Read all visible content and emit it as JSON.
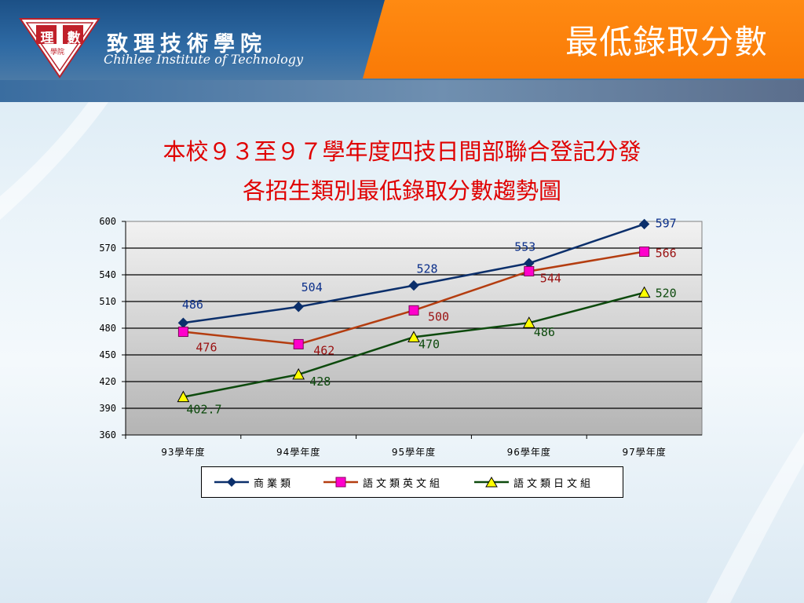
{
  "header": {
    "title": "最低錄取分數",
    "school_name_zh": "致理技術學院",
    "school_name_en": "Chihlee Institute of Technology",
    "logo_chars": [
      "理",
      "數",
      "學院"
    ]
  },
  "colors": {
    "header_blue": "#1c5086",
    "orange_tab": "#f97a06",
    "title_red": "#e00000",
    "series_1": "#0b2f6b",
    "series_2": "#b43d10",
    "series_3": "#0d4a0d",
    "marker_1": "#0b2f6b",
    "marker_2": "#ff00cc",
    "marker_3": "#ffff00"
  },
  "chart_data": {
    "type": "line",
    "title_lines": [
      "本校９３至９７學年度四技日間部聯合登記分發",
      "各招生類別最低錄取分數趨勢圖"
    ],
    "categories": [
      "93學年度",
      "94學年度",
      "95學年度",
      "96學年度",
      "97學年度"
    ],
    "ylim": [
      360,
      600
    ],
    "yticks": [
      360,
      390,
      420,
      450,
      480,
      510,
      540,
      570,
      600
    ],
    "grid": true,
    "legend_position": "bottom",
    "series": [
      {
        "name": "商業類",
        "marker": "diamond",
        "values": [
          486,
          504,
          528,
          553,
          597
        ],
        "labels": [
          "486",
          "504",
          "528",
          "553",
          "597"
        ]
      },
      {
        "name": "語文類英文組",
        "marker": "square",
        "values": [
          476,
          462,
          500,
          544,
          566
        ],
        "labels": [
          "476",
          "462",
          "500",
          "544",
          "566"
        ]
      },
      {
        "name": "語文類日文組",
        "marker": "triangle",
        "values": [
          402.7,
          428,
          470,
          486,
          520
        ],
        "labels": [
          "402.7",
          "428",
          "470",
          "486",
          "520"
        ]
      }
    ]
  }
}
